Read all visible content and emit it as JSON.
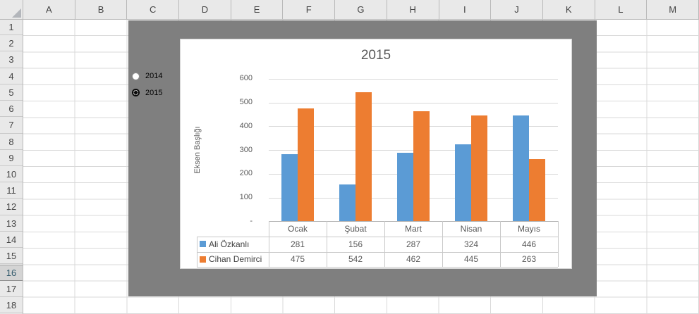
{
  "grid": {
    "columns": [
      "A",
      "B",
      "C",
      "D",
      "E",
      "F",
      "G",
      "H",
      "I",
      "J",
      "K",
      "L",
      "M"
    ],
    "rows": [
      "1",
      "2",
      "3",
      "4",
      "5",
      "6",
      "7",
      "8",
      "9",
      "10",
      "11",
      "12",
      "13",
      "14",
      "15",
      "16",
      "17",
      "18"
    ],
    "active_row": "16"
  },
  "form_controls": {
    "radio_group": [
      {
        "label": "2014",
        "selected": false
      },
      {
        "label": "2015",
        "selected": true
      }
    ]
  },
  "chart_data": {
    "type": "bar",
    "title": "2015",
    "xlabel": "",
    "ylabel": "Eksen Başlığı",
    "categories": [
      "Ocak",
      "Şubat",
      "Mart",
      "Nisan",
      "Mayıs"
    ],
    "series": [
      {
        "name": "Ali Özkanlı",
        "color": "#5B9BD5",
        "values": [
          281,
          156,
          287,
          324,
          446
        ]
      },
      {
        "name": "Cihan Demirci",
        "color": "#ED7D31",
        "values": [
          475,
          542,
          462,
          445,
          263
        ]
      }
    ],
    "ylim": [
      0,
      600
    ],
    "ytick_step": 100,
    "ytick_labels": [
      "600",
      "500",
      "400",
      "300",
      "200",
      "100",
      "-"
    ],
    "gridlines": true,
    "legend_position": "data-table-keys",
    "data_table": true
  },
  "colors": {
    "shape_fill": "#7F7F7F",
    "chart_text": "#595959",
    "gridline": "#D9D9D9",
    "series1": "#5B9BD5",
    "series2": "#ED7D31"
  }
}
